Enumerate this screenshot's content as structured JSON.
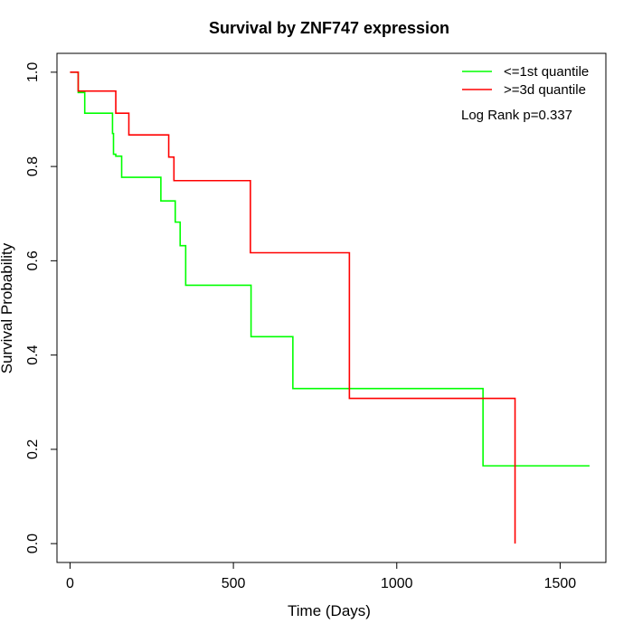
{
  "chart_data": {
    "type": "line",
    "title": "Survival by ZNF747 expression",
    "xlabel": "Time (Days)",
    "ylabel": "Survival Probability",
    "xlim": [
      -40,
      1640
    ],
    "ylim": [
      -0.04,
      1.04
    ],
    "x_ticks": [
      0,
      500,
      1000,
      1500
    ],
    "x_tick_labels": [
      "0",
      "500",
      "1000",
      "1500"
    ],
    "y_ticks": [
      0.0,
      0.2,
      0.4,
      0.6,
      0.8,
      1.0
    ],
    "y_tick_labels": [
      "0.0",
      "0.2",
      "0.4",
      "0.6",
      "0.8",
      "1.0"
    ],
    "grid": false,
    "legend_position": "top-right",
    "annotation": "Log Rank p=0.337",
    "series": [
      {
        "name": "<=1st quantile",
        "color": "#00ff00",
        "x": [
          0,
          25,
          45,
          130,
          133,
          140,
          158,
          278,
          322,
          337,
          354,
          376,
          554,
          682,
          1264,
          1590
        ],
        "y": [
          1.0,
          0.957,
          0.913,
          0.87,
          0.826,
          0.822,
          0.777,
          0.727,
          0.682,
          0.632,
          0.548,
          0.548,
          0.439,
          0.329,
          0.165,
          0.165
        ]
      },
      {
        "name": ">=3d quantile",
        "color": "#ff0000",
        "x": [
          0,
          25,
          140,
          180,
          302,
          318,
          552,
          855,
          1362,
          1362
        ],
        "y": [
          1.0,
          0.96,
          0.913,
          0.867,
          0.82,
          0.77,
          0.617,
          0.308,
          0.308,
          0.0
        ]
      }
    ]
  }
}
